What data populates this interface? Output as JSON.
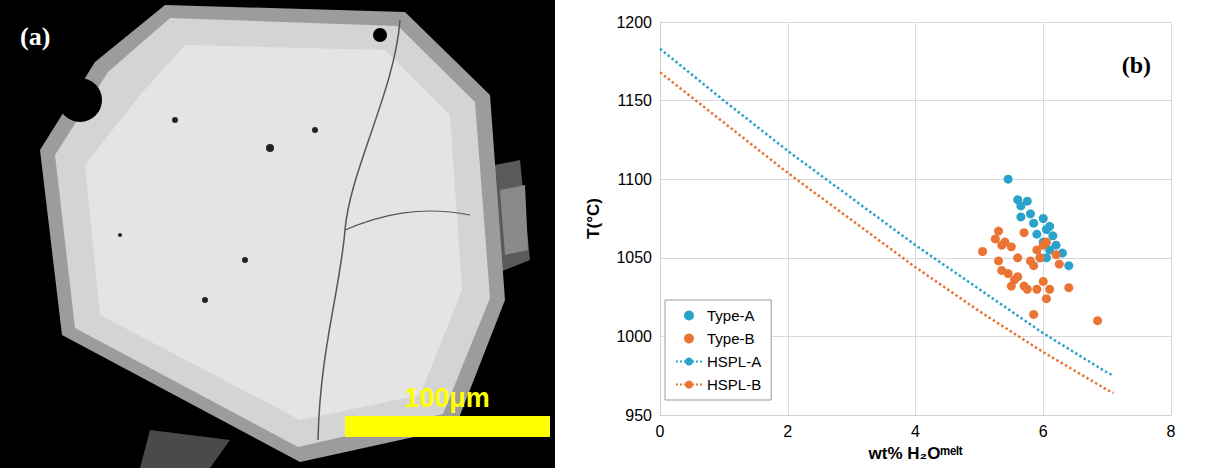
{
  "panel_a": {
    "label": "(a)",
    "scale_bar": {
      "label": "100μm"
    }
  },
  "chart_data": {
    "type": "scatter",
    "title": "(b)",
    "x_label": "wt% H₂Oᵐᵉˡᵗ",
    "y_label": "T(°C)",
    "xlim": [
      0,
      8
    ],
    "xticks": [
      0,
      2,
      4,
      6,
      8
    ],
    "ylim": [
      950,
      1200
    ],
    "yticks": [
      950,
      1000,
      1050,
      1100,
      1150,
      1200
    ],
    "grid": true,
    "legend": "lower left",
    "series": [
      {
        "name": "Type-A",
        "type": "scatter",
        "marker": "circle",
        "color": "#2aa3cc",
        "x": [
          5.45,
          5.6,
          5.65,
          5.75,
          5.65,
          5.8,
          5.85,
          5.9,
          6.0,
          6.05,
          6.1,
          6.15,
          6.2,
          6.0,
          6.1,
          6.3,
          6.4,
          5.95,
          6.05
        ],
        "values": [
          1100,
          1087,
          1083,
          1086,
          1076,
          1078,
          1072,
          1065,
          1075,
          1068,
          1070,
          1064,
          1058,
          1060,
          1055,
          1053,
          1045,
          1050,
          1050
        ]
      },
      {
        "name": "Type-B",
        "type": "scatter",
        "marker": "circle",
        "color": "#ea7433",
        "x": [
          5.05,
          5.25,
          5.3,
          5.35,
          5.4,
          5.3,
          5.35,
          5.45,
          5.5,
          5.6,
          5.55,
          5.7,
          5.75,
          5.8,
          5.85,
          5.7,
          5.9,
          5.95,
          6.0,
          6.05,
          6.0,
          5.9,
          5.85,
          6.05,
          6.1,
          6.2,
          6.25,
          6.4,
          6.85,
          5.6,
          5.5
        ],
        "values": [
          1054,
          1062,
          1067,
          1058,
          1060,
          1048,
          1042,
          1040,
          1057,
          1038,
          1036,
          1032,
          1030,
          1048,
          1045,
          1066,
          1055,
          1050,
          1058,
          1060,
          1035,
          1030,
          1014,
          1024,
          1030,
          1052,
          1046,
          1031,
          1010,
          1050,
          1032
        ]
      },
      {
        "name": "HSPL-A",
        "type": "line",
        "marker": "none",
        "line_style": "dotted",
        "color": "#2aa3cc",
        "x": [
          0,
          1,
          2,
          3,
          4,
          5,
          6,
          7,
          7.1
        ],
        "values": [
          1183,
          1150,
          1118,
          1088,
          1058,
          1030,
          1002,
          977,
          975
        ]
      },
      {
        "name": "HSPL-B",
        "type": "line",
        "marker": "none",
        "line_style": "dotted",
        "color": "#ea7433",
        "x": [
          0,
          1,
          2,
          3,
          4,
          5,
          6,
          7,
          7.1
        ],
        "values": [
          1168,
          1136,
          1104,
          1074,
          1044,
          1016,
          990,
          966,
          964
        ]
      }
    ]
  }
}
